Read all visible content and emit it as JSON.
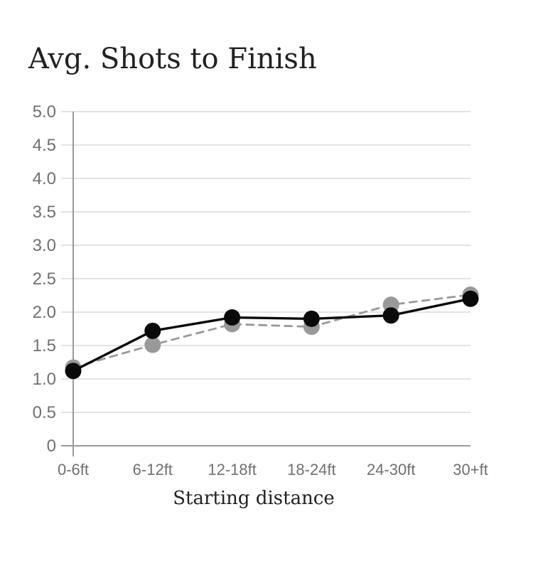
{
  "chart_data": {
    "type": "line",
    "title": "Avg. Shots to Finish",
    "xlabel": "Starting distance",
    "ylabel": "",
    "categories": [
      "0-6ft",
      "6-12ft",
      "12-18ft",
      "18-24ft",
      "24-30ft",
      "30+ft"
    ],
    "series": [
      {
        "name": "dashed-gray",
        "line_style": "dashed",
        "color": "#999999",
        "values": [
          1.17,
          1.51,
          1.82,
          1.78,
          2.11,
          2.26
        ]
      },
      {
        "name": "solid-black",
        "line_style": "solid",
        "color": "#0a0a0a",
        "values": [
          1.12,
          1.72,
          1.92,
          1.9,
          1.95,
          2.2
        ]
      }
    ],
    "ylim": [
      0,
      5
    ],
    "ytick_step": 0.5,
    "ytick_labels": [
      "0",
      "0.5",
      "1.0",
      "1.5",
      "2.0",
      "2.5",
      "3.0",
      "3.5",
      "4.0",
      "4.5",
      "5.0"
    ],
    "grid": true,
    "legend": "none"
  },
  "colors": {
    "background": "#ffffff",
    "grid": "#e3e3e3",
    "axis": "#9a9a9a",
    "tick_text": "#707070",
    "heading_text": "#212121"
  }
}
